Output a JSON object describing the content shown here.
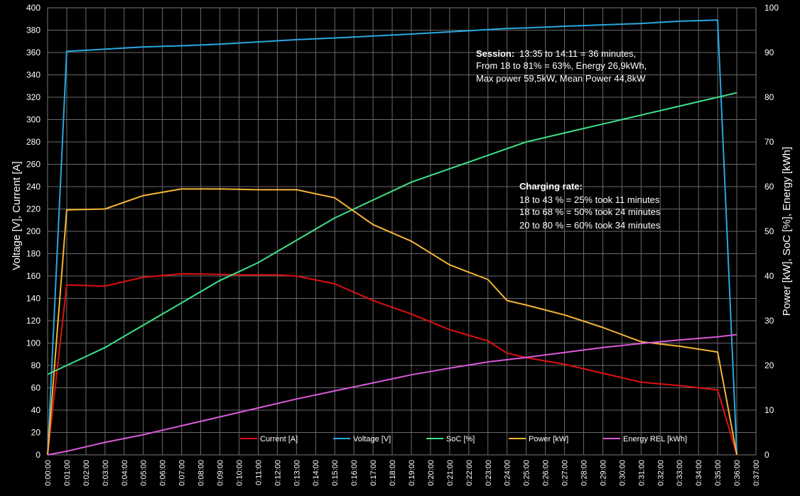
{
  "chart_data": {
    "type": "line",
    "title": "",
    "ylabel_left": "Voltage [V], Current [A]",
    "ylabel_right": "Power [kW], SoC [%], Energy [kWh]",
    "xlabel": "",
    "ylim_left": [
      0,
      400
    ],
    "ylim_right": [
      0,
      100
    ],
    "yticks_left": [
      "0",
      "20",
      "40",
      "60",
      "80",
      "100",
      "120",
      "140",
      "160",
      "180",
      "200",
      "220",
      "240",
      "260",
      "280",
      "300",
      "320",
      "340",
      "360",
      "380",
      "400"
    ],
    "yticks_right": [
      "0",
      "10",
      "20",
      "30",
      "40",
      "50",
      "60",
      "70",
      "80",
      "90",
      "100"
    ],
    "x_ticks": [
      "0:00:00",
      "0:01:00",
      "0:02:00",
      "0:03:00",
      "0:04:00",
      "0:05:00",
      "0:06:00",
      "0:07:00",
      "0:08:00",
      "0:09:00",
      "0:10:00",
      "0:11:00",
      "0:12:00",
      "0:13:00",
      "0:14:00",
      "0:15:00",
      "0:16:00",
      "0:17:00",
      "0:18:00",
      "0:19:00",
      "0:20:00",
      "0:21:00",
      "0:22:00",
      "0:23:00",
      "0:24:00",
      "0:25:00",
      "0:26:00",
      "0:27:00",
      "0:28:00",
      "0:29:00",
      "0:30:00",
      "0:31:00",
      "0:32:00",
      "0:33:00",
      "0:34:00",
      "0:35:00",
      "0:36:00",
      "0:37:00"
    ],
    "x_range_minutes": [
      0,
      37
    ],
    "grid": true,
    "legend_placement": "bottom",
    "series": [
      {
        "name": "Current [A]",
        "axis": "left",
        "color": "#e01010",
        "points": [
          [
            0,
            0
          ],
          [
            1,
            152
          ],
          [
            3,
            151
          ],
          [
            5,
            159
          ],
          [
            7,
            162
          ],
          [
            9,
            161.5
          ],
          [
            10,
            161
          ],
          [
            12,
            161
          ],
          [
            13,
            160
          ],
          [
            15,
            153
          ],
          [
            17,
            138
          ],
          [
            19,
            126
          ],
          [
            21,
            112
          ],
          [
            23,
            102
          ],
          [
            24,
            91
          ],
          [
            25,
            87
          ],
          [
            27,
            81
          ],
          [
            29,
            73
          ],
          [
            31,
            65
          ],
          [
            33,
            62
          ],
          [
            35,
            58
          ],
          [
            36,
            0
          ]
        ]
      },
      {
        "name": "Voltage [V]",
        "axis": "left",
        "color": "#29a8e0",
        "points": [
          [
            0,
            0
          ],
          [
            1,
            361
          ],
          [
            3,
            363
          ],
          [
            5,
            365
          ],
          [
            7,
            366
          ],
          [
            9,
            367.5
          ],
          [
            10,
            368.5
          ],
          [
            13,
            371.5
          ],
          [
            15,
            373
          ],
          [
            19,
            376.5
          ],
          [
            21,
            378.5
          ],
          [
            23,
            380.5
          ],
          [
            24,
            381.5
          ],
          [
            25,
            382
          ],
          [
            27,
            383.5
          ],
          [
            31,
            386
          ],
          [
            33,
            388
          ],
          [
            35,
            389
          ],
          [
            36,
            0
          ]
        ]
      },
      {
        "name": "SoC [%]",
        "axis": "right",
        "color": "#3ee28a",
        "points": [
          [
            0,
            18
          ],
          [
            1,
            20
          ],
          [
            3,
            24
          ],
          [
            5,
            29
          ],
          [
            7,
            34
          ],
          [
            9,
            39
          ],
          [
            11,
            43
          ],
          [
            13,
            48
          ],
          [
            15,
            53
          ],
          [
            17,
            57
          ],
          [
            19,
            61
          ],
          [
            21,
            64
          ],
          [
            23,
            67
          ],
          [
            24,
            68.5
          ],
          [
            25,
            70
          ],
          [
            27,
            72
          ],
          [
            29,
            74
          ],
          [
            31,
            76
          ],
          [
            33,
            78
          ],
          [
            35,
            80
          ],
          [
            36,
            81
          ]
        ]
      },
      {
        "name": "Power [kW]",
        "axis": "right",
        "color": "#f5b535",
        "points": [
          [
            0,
            0
          ],
          [
            1,
            54.8
          ],
          [
            3,
            55
          ],
          [
            5,
            58
          ],
          [
            7,
            59.5
          ],
          [
            9,
            59.5
          ],
          [
            11,
            59.3
          ],
          [
            13,
            59.3
          ],
          [
            15,
            57.5
          ],
          [
            17,
            51.5
          ],
          [
            19,
            47.8
          ],
          [
            21,
            42.5
          ],
          [
            23,
            39.2
          ],
          [
            24,
            34.5
          ],
          [
            25,
            33.5
          ],
          [
            27,
            31.3
          ],
          [
            29,
            28.5
          ],
          [
            31,
            25.3
          ],
          [
            33,
            24.3
          ],
          [
            35,
            23
          ],
          [
            36,
            0
          ]
        ]
      },
      {
        "name": "Energy REL [kWh]",
        "axis": "right",
        "color": "#d95ad9",
        "points": [
          [
            0,
            0
          ],
          [
            1,
            0.8
          ],
          [
            3,
            2.8
          ],
          [
            5,
            4.5
          ],
          [
            7,
            6.5
          ],
          [
            9,
            8.5
          ],
          [
            11,
            10.5
          ],
          [
            13,
            12.5
          ],
          [
            15,
            14.3
          ],
          [
            17,
            16.1
          ],
          [
            19,
            17.9
          ],
          [
            21,
            19.4
          ],
          [
            23,
            20.8
          ],
          [
            25,
            21.8
          ],
          [
            27,
            22.9
          ],
          [
            29,
            24
          ],
          [
            31,
            24.9
          ],
          [
            33,
            25.7
          ],
          [
            35,
            26.4
          ],
          [
            36,
            26.9
          ]
        ]
      }
    ],
    "annotations": {
      "session": {
        "heading": "Session:",
        "line1": "13:35 to 14:11 = 36 minutes,",
        "line2": "From 18 to 81% = 63%, Energy 26,9kWh,",
        "line3": "Max power 59,5kW, Mean Power 44,8kW"
      },
      "charging_rate": {
        "heading": "Charging rate:",
        "line1": "18 to 43 % = 25% took  11 minutes",
        "line2": "18 to 68 % = 50% took  24 minutes",
        "line3": "20 to 80 % = 60% took  34 minutes"
      }
    }
  }
}
